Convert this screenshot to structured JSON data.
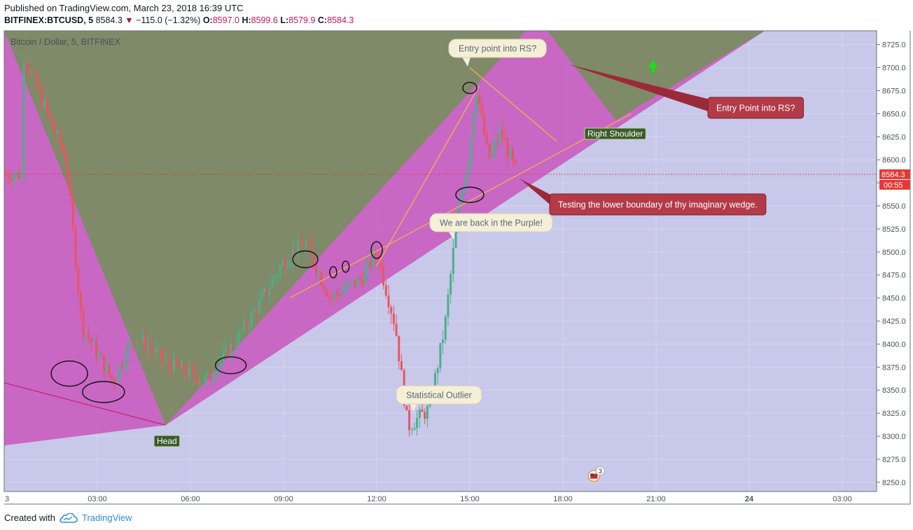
{
  "header": {
    "published": "Published on TradingView.com, March 23, 2018 16:39 UTC",
    "symbol": "BITFINEX:BTCUSD, 5",
    "last": "8584.3",
    "change": "−115.0 (−1.32%)",
    "o_label": "O:",
    "o": "8597.0",
    "h_label": "H:",
    "h": "8599.6",
    "l_label": "L:",
    "l": "8579.9",
    "c_label": "C:",
    "c": "8584.3"
  },
  "legend_title": "Bitcoin / Dollar, 5, BITFINEX",
  "footer": {
    "created_with": "Created with",
    "brand": "TradingView"
  },
  "price_label": {
    "value": "8584.3",
    "countdown": "00:55",
    "color": "#e53935"
  },
  "colors": {
    "up": "#4caf8a",
    "down": "#e8565f",
    "purple_zone": "#c95cc0",
    "olive_zone": "#7f8a68",
    "lavender_zone": "#c8c8ea",
    "trendline": "#f5b93a"
  },
  "chart_data": {
    "type": "candlestick",
    "title": "Bitcoin / Dollar, 5, BITFINEX",
    "y_ticks": [
      8250,
      8275,
      8300,
      8325,
      8350,
      8375,
      8400,
      8425,
      8450,
      8475,
      8500,
      8525,
      8550,
      8575,
      8600,
      8625,
      8650,
      8675,
      8700,
      8725
    ],
    "y_tick_labels": [
      "8250.0",
      "8275.0",
      "8300.0",
      "8325.0",
      "8350.0",
      "8375.0",
      "8400.0",
      "8425.0",
      "8450.0",
      "8475.0",
      "8500.0",
      "8525.0",
      "8550.0",
      "8575.0",
      "8600.0",
      "8625.0",
      "8650.0",
      "8675.0",
      "8700.0",
      "8725.0"
    ],
    "ylim": [
      8240,
      8740
    ],
    "x_ticks": [
      "3",
      "03:00",
      "06:00",
      "09:00",
      "12:00",
      "15:00",
      "18:00",
      "21:00",
      "24",
      "03:00"
    ],
    "x_tick_hours": [
      0,
      3,
      6,
      9,
      12,
      15,
      18,
      21,
      24,
      27
    ],
    "xlim": [
      0,
      28.2
    ],
    "last_price": 8584.3,
    "candles_description": "BTCUSD 5-minute candles, March 23 2018",
    "key_points": [
      {
        "hour": 0.6,
        "price": 8715
      },
      {
        "hour": 2.0,
        "price": 8600
      },
      {
        "hour": 2.5,
        "price": 8420
      },
      {
        "hour": 3.5,
        "price": 8360
      },
      {
        "hour": 4.2,
        "price": 8410
      },
      {
        "hour": 5.2,
        "price": 8380
      },
      {
        "hour": 6.5,
        "price": 8360
      },
      {
        "hour": 7.8,
        "price": 8420
      },
      {
        "hour": 9.0,
        "price": 8490
      },
      {
        "hour": 9.7,
        "price": 8510
      },
      {
        "hour": 10.5,
        "price": 8450
      },
      {
        "hour": 11.5,
        "price": 8470
      },
      {
        "hour": 12.0,
        "price": 8500
      },
      {
        "hour": 12.6,
        "price": 8420
      },
      {
        "hour": 13.0,
        "price": 8310
      },
      {
        "hour": 13.7,
        "price": 8330
      },
      {
        "hour": 14.2,
        "price": 8420
      },
      {
        "hour": 14.6,
        "price": 8540
      },
      {
        "hour": 15.0,
        "price": 8610
      },
      {
        "hour": 15.2,
        "price": 8680
      },
      {
        "hour": 15.6,
        "price": 8600
      },
      {
        "hour": 16.0,
        "price": 8630
      },
      {
        "hour": 16.5,
        "price": 8584.3
      }
    ],
    "annotations": [
      {
        "text": "Entry point into RS?",
        "style": "callout"
      },
      {
        "text": "Entry Point into RS?",
        "style": "red-callout"
      },
      {
        "text": "Right Shoulder",
        "style": "green-label"
      },
      {
        "text": "Testing the lower boundary of thy imaginary wedge.",
        "style": "red-callout"
      },
      {
        "text": "We are back in the Purple!",
        "style": "callout"
      },
      {
        "text": "Statistical Outlier",
        "style": "callout"
      },
      {
        "text": "Head",
        "style": "green-label"
      }
    ],
    "event_badge": "3"
  }
}
